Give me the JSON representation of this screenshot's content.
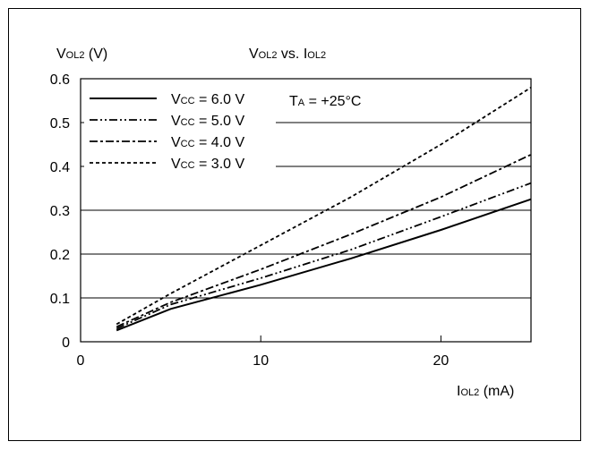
{
  "chart_data": {
    "type": "line",
    "title": {
      "main": "V",
      "main_sub": "OL2",
      "rest": " vs. ",
      "x": "I",
      "x_sub": "OL2"
    },
    "ylabel": {
      "main": "V",
      "sub": "OL2",
      "unit": " (V)"
    },
    "xlabel": {
      "main": "I",
      "sub": "OL2",
      "unit": " (mA)"
    },
    "xlim": [
      0,
      25
    ],
    "ylim": [
      0,
      0.6
    ],
    "x_ticks": [
      "0",
      "10",
      "20"
    ],
    "x_tick_values": [
      0,
      10,
      20
    ],
    "y_ticks": [
      "0",
      "0.1",
      "0.2",
      "0.3",
      "0.4",
      "0.5",
      "0.6"
    ],
    "y_tick_values": [
      0,
      0.1,
      0.2,
      0.3,
      0.4,
      0.5,
      0.6
    ],
    "grid": "horizontal",
    "annotation": {
      "main": "T",
      "sub": "A",
      "rest": " = +25°C"
    },
    "legend_position": "top-left",
    "series": [
      {
        "name": "Vcc = 6.0 V",
        "label_main": "V",
        "label_sub": "CC",
        "label_rest": " = 6.0 V",
        "dash": "solid",
        "x": [
          2,
          5,
          10,
          15,
          20,
          25
        ],
        "y": [
          0.026,
          0.075,
          0.13,
          0.19,
          0.255,
          0.325
        ]
      },
      {
        "name": "Vcc = 5.0 V",
        "label_main": "V",
        "label_sub": "CC",
        "label_rest": " = 5.0 V",
        "dash": "dash-dot-dot",
        "x": [
          2,
          5,
          10,
          15,
          20,
          25
        ],
        "y": [
          0.03,
          0.085,
          0.145,
          0.21,
          0.285,
          0.362
        ]
      },
      {
        "name": "Vcc = 4.0 V",
        "label_main": "V",
        "label_sub": "CC",
        "label_rest": " = 4.0 V",
        "dash": "dash-dot",
        "x": [
          2,
          5,
          10,
          15,
          20,
          25
        ],
        "y": [
          0.034,
          0.09,
          0.165,
          0.245,
          0.33,
          0.427
        ]
      },
      {
        "name": "Vcc = 3.0 V",
        "label_main": "V",
        "label_sub": "CC",
        "label_rest": " = 3.0 V",
        "dash": "dashed",
        "x": [
          2,
          5,
          10,
          15,
          20,
          25
        ],
        "y": [
          0.04,
          0.11,
          0.22,
          0.33,
          0.45,
          0.58
        ]
      }
    ]
  }
}
